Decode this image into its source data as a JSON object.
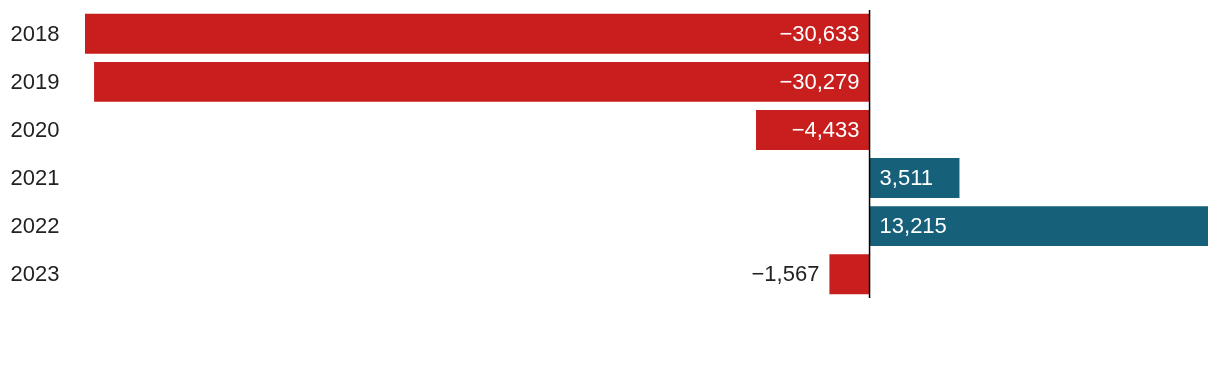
{
  "chart_data": {
    "type": "bar",
    "orientation": "horizontal",
    "categories": [
      "2018",
      "2019",
      "2020",
      "2021",
      "2022",
      "2023"
    ],
    "values": [
      -30633,
      -30279,
      -4433,
      3511,
      13215,
      -1567
    ],
    "colors": [
      "#c91e1e",
      "#c91e1e",
      "#c91e1e",
      "#17607a",
      "#17607a",
      "#c91e1e"
    ],
    "value_labels": [
      "−30,633",
      "−30,279",
      "−4,433",
      "3,511",
      "13,215",
      "−1,567"
    ]
  }
}
